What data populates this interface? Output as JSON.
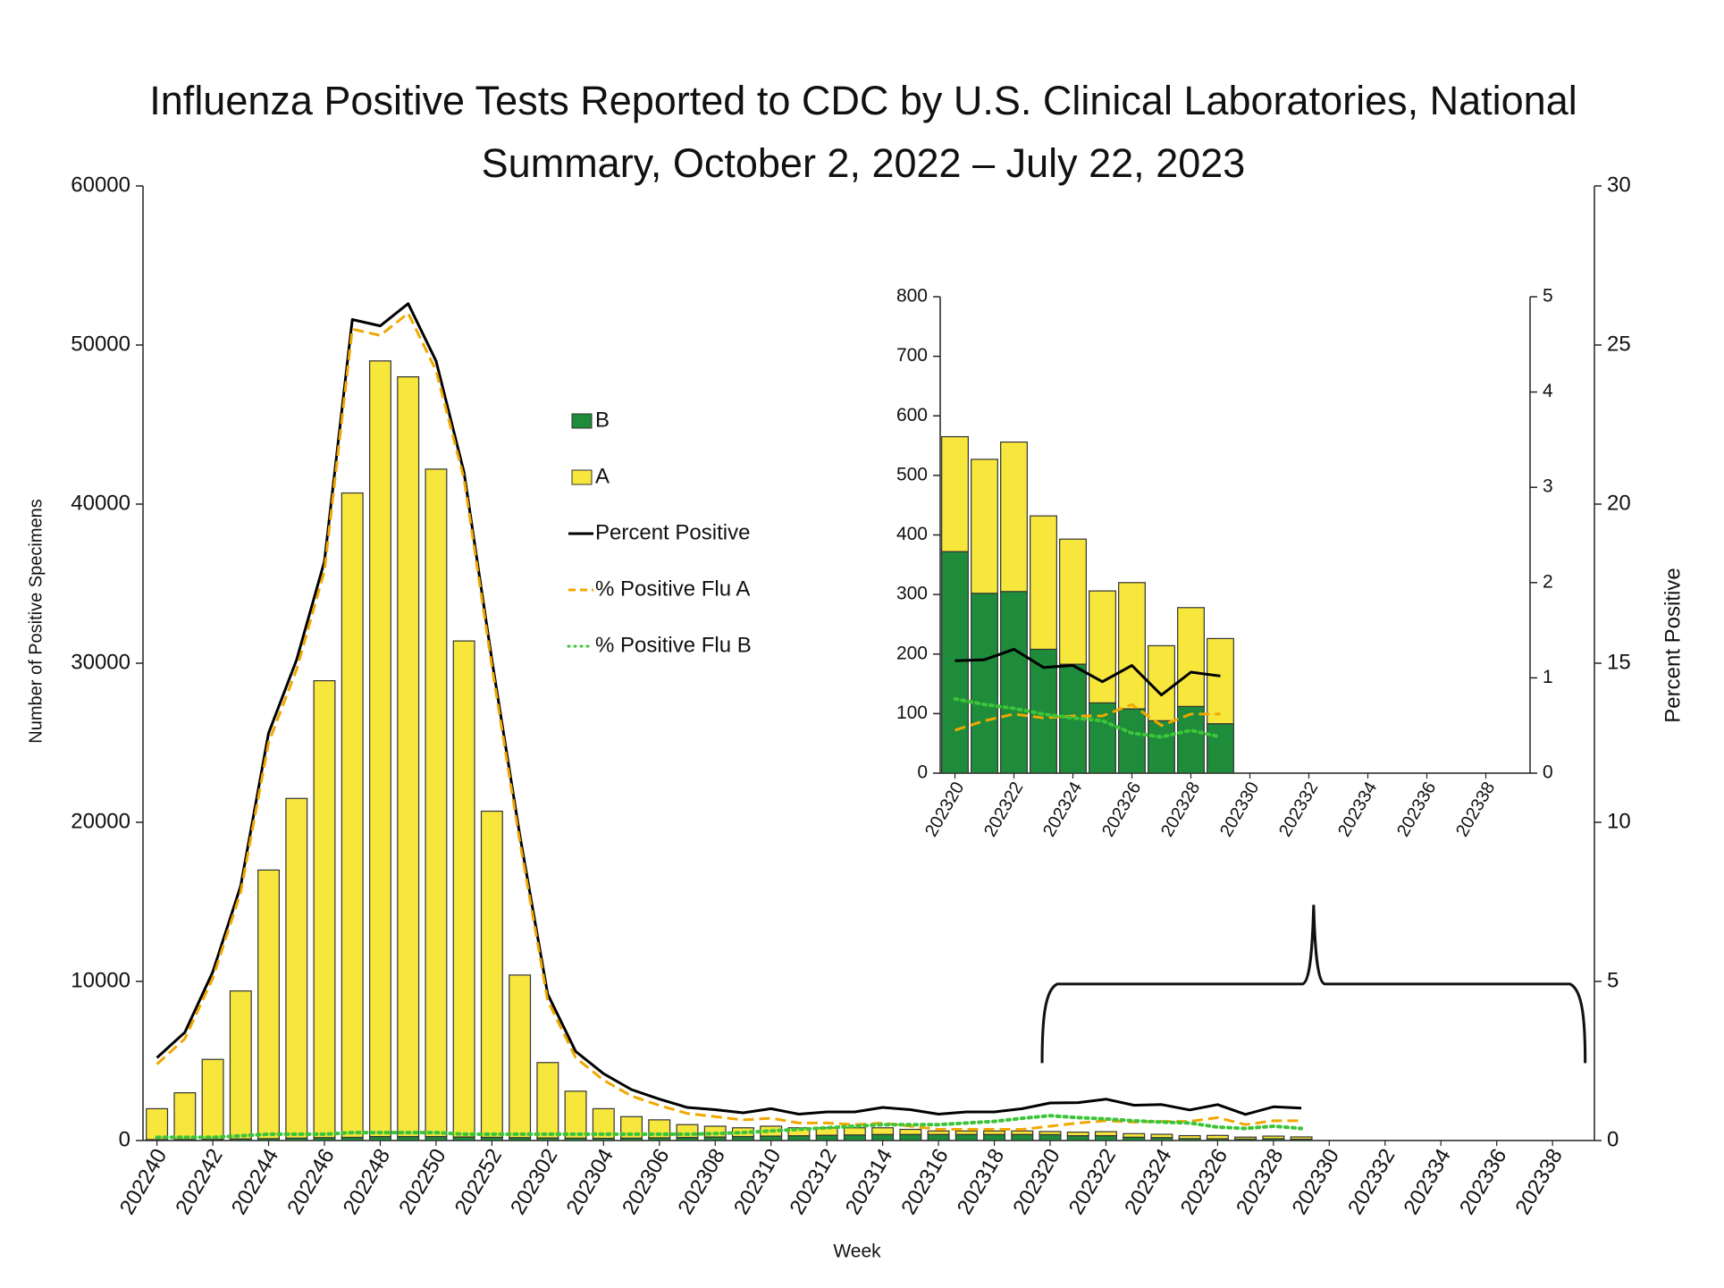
{
  "chart_data": [
    {
      "type": "combo",
      "title": "Influenza Positive Tests Reported to CDC by U.S. Clinical Laboratories, National Summary, October 2, 2022 – July 22, 2023",
      "x_label": "Week",
      "y_label": "Number of Positive Specimens",
      "y2_label": "Percent Positive",
      "stacked": true,
      "legend": "center",
      "categories": [
        "202240",
        null,
        "202242",
        null,
        "202244",
        null,
        "202246",
        null,
        "202248",
        null,
        "202250",
        null,
        "202252",
        null,
        "202302",
        null,
        "202304",
        null,
        "202306",
        null,
        "202308",
        null,
        "202310",
        null,
        "202312",
        null,
        "202314",
        null,
        "202316",
        null,
        "202318",
        null,
        "202320",
        null,
        "202322",
        null,
        "202324",
        null,
        "202326",
        null,
        "202328",
        null,
        "202330",
        null,
        "202332",
        null,
        "202334",
        null,
        "202336",
        null,
        "202338",
        null
      ],
      "ylim": [
        0,
        60000
      ],
      "yticks": [
        0,
        10000,
        20000,
        30000,
        40000,
        50000,
        60000
      ],
      "y2lim": [
        0,
        30
      ],
      "y2ticks": [
        0,
        5,
        10,
        15,
        20,
        25,
        30
      ],
      "series": [
        {
          "name": "B",
          "type": "bar",
          "color": "#1e8c3a",
          "values": [
            60,
            70,
            80,
            100,
            120,
            150,
            180,
            200,
            250,
            250,
            250,
            220,
            200,
            180,
            160,
            150,
            140,
            150,
            170,
            190,
            220,
            250,
            280,
            300,
            330,
            350,
            380,
            380,
            380,
            380,
            380,
            380,
            372,
            302,
            305,
            208,
            183,
            118,
            108,
            88,
            112,
            83,
            null,
            null,
            null,
            null,
            null,
            null,
            null,
            null,
            null,
            null
          ]
        },
        {
          "name": "A",
          "type": "bar",
          "color": "#f7e63c",
          "values": [
            1940,
            2930,
            5020,
            9300,
            16880,
            21350,
            28720,
            40500,
            48750,
            47750,
            41950,
            31180,
            20500,
            10220,
            4740,
            2950,
            1860,
            1350,
            1130,
            810,
            680,
            550,
            620,
            500,
            470,
            450,
            420,
            320,
            220,
            220,
            220,
            220,
            193,
            225,
            251,
            224,
            210,
            188,
            212,
            126,
            166,
            143,
            null,
            null,
            null,
            null,
            null,
            null,
            null,
            null,
            null,
            null
          ]
        },
        {
          "name": "Percent Positive",
          "type": "line",
          "axis": "y2",
          "style": "solid",
          "color": "#000000",
          "values": [
            2.6,
            3.4,
            5.3,
            8.0,
            12.8,
            15.1,
            18.2,
            25.8,
            25.6,
            26.3,
            24.5,
            21.0,
            15.1,
            9.6,
            4.6,
            2.8,
            2.1,
            1.6,
            1.3,
            1.04,
            0.97,
            0.87,
            1.0,
            0.83,
            0.9,
            0.9,
            1.04,
            0.97,
            0.83,
            0.9,
            0.9,
            1.0,
            1.18,
            1.19,
            1.3,
            1.11,
            1.13,
            0.96,
            1.13,
            0.82,
            1.06,
            1.02,
            null,
            null,
            null,
            null,
            null,
            null,
            null,
            null,
            null,
            null
          ]
        },
        {
          "name": "% Positive Flu A",
          "type": "line",
          "axis": "y2",
          "style": "dashed",
          "color": "#f0a800",
          "values": [
            2.4,
            3.2,
            5.1,
            7.8,
            12.5,
            14.8,
            17.9,
            25.5,
            25.3,
            26.0,
            24.2,
            20.8,
            14.9,
            9.4,
            4.4,
            2.6,
            1.9,
            1.4,
            1.1,
            0.85,
            0.75,
            0.65,
            0.7,
            0.55,
            0.55,
            0.5,
            0.55,
            0.45,
            0.35,
            0.35,
            0.35,
            0.35,
            0.45,
            0.55,
            0.62,
            0.58,
            0.6,
            0.6,
            0.72,
            0.5,
            0.62,
            0.62,
            null,
            null,
            null,
            null,
            null,
            null,
            null,
            null,
            null,
            null
          ]
        },
        {
          "name": "% Positive Flu B",
          "type": "line",
          "axis": "y2",
          "style": "dotted",
          "color": "#3cc43a",
          "values": [
            0.1,
            0.1,
            0.1,
            0.15,
            0.2,
            0.2,
            0.2,
            0.25,
            0.25,
            0.25,
            0.25,
            0.2,
            0.2,
            0.2,
            0.2,
            0.2,
            0.2,
            0.2,
            0.2,
            0.2,
            0.22,
            0.25,
            0.3,
            0.35,
            0.4,
            0.45,
            0.5,
            0.5,
            0.5,
            0.55,
            0.6,
            0.7,
            0.78,
            0.72,
            0.68,
            0.62,
            0.58,
            0.55,
            0.42,
            0.38,
            0.45,
            0.38,
            null,
            null,
            null,
            null,
            null,
            null,
            null,
            null,
            null,
            null
          ]
        }
      ]
    },
    {
      "type": "combo",
      "stacked": true,
      "categories": [
        "202320",
        null,
        "202322",
        null,
        "202324",
        null,
        "202326",
        null,
        "202328",
        null,
        "202330",
        null,
        "202332",
        null,
        "202334",
        null,
        "202336",
        null,
        "202338",
        null
      ],
      "ylim": [
        0,
        800
      ],
      "yticks": [
        0,
        100,
        200,
        300,
        400,
        500,
        600,
        700,
        800
      ],
      "y2lim": [
        0,
        5
      ],
      "y2ticks": [
        0,
        1,
        2,
        3,
        4,
        5
      ],
      "series": [
        {
          "name": "B",
          "type": "bar",
          "color": "#1e8c3a",
          "values": [
            372,
            302,
            305,
            208,
            183,
            118,
            108,
            88,
            112,
            83,
            null,
            null,
            null,
            null,
            null,
            null,
            null,
            null,
            null,
            null
          ]
        },
        {
          "name": "A",
          "type": "bar",
          "color": "#f7e63c",
          "values": [
            193,
            225,
            251,
            224,
            210,
            188,
            212,
            126,
            166,
            143,
            null,
            null,
            null,
            null,
            null,
            null,
            null,
            null,
            null,
            null
          ]
        },
        {
          "name": "Percent Positive",
          "type": "line",
          "axis": "y2",
          "style": "solid",
          "color": "#000000",
          "values": [
            1.18,
            1.19,
            1.3,
            1.11,
            1.13,
            0.96,
            1.13,
            0.82,
            1.06,
            1.02,
            null,
            null,
            null,
            null,
            null,
            null,
            null,
            null,
            null,
            null
          ]
        },
        {
          "name": "% Positive Flu A",
          "type": "line",
          "axis": "y2",
          "style": "dashed",
          "color": "#f0a800",
          "values": [
            0.45,
            0.55,
            0.62,
            0.58,
            0.6,
            0.6,
            0.72,
            0.5,
            0.62,
            0.62,
            null,
            null,
            null,
            null,
            null,
            null,
            null,
            null,
            null,
            null
          ]
        },
        {
          "name": "% Positive Flu B",
          "type": "line",
          "axis": "y2",
          "style": "dotted",
          "color": "#3cc43a",
          "values": [
            0.78,
            0.72,
            0.68,
            0.62,
            0.58,
            0.55,
            0.42,
            0.38,
            0.45,
            0.38,
            null,
            null,
            null,
            null,
            null,
            null,
            null,
            null,
            null,
            null
          ]
        }
      ]
    }
  ]
}
